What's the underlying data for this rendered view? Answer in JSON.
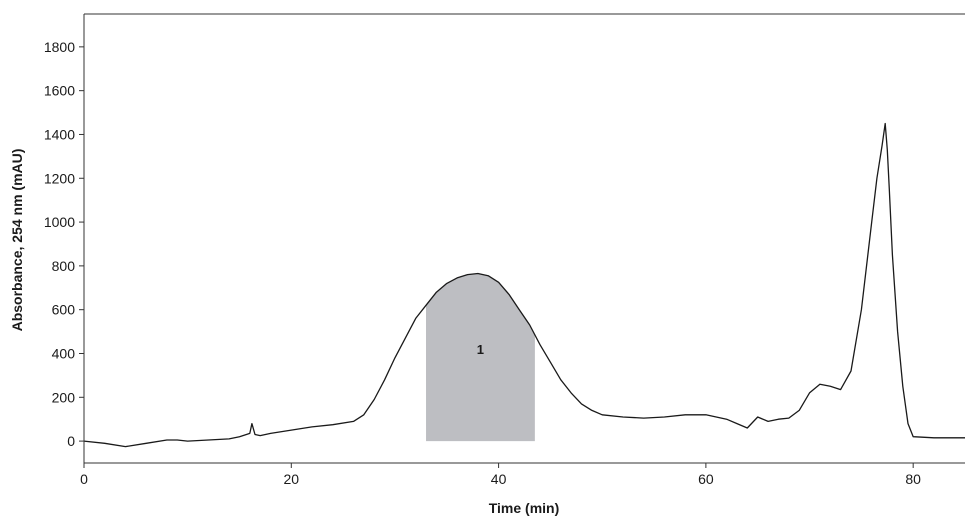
{
  "chart_data": {
    "type": "line",
    "title": "",
    "xlabel": "Time (min)",
    "ylabel": "Absorbance, 254 nm (mAU)",
    "xlim": [
      0,
      85
    ],
    "ylim": [
      -100,
      1950
    ],
    "xticks": [
      0,
      20,
      40,
      60,
      80
    ],
    "yticks": [
      0,
      200,
      400,
      600,
      800,
      1000,
      1200,
      1400,
      1600,
      1800
    ],
    "grid": false,
    "legend": "none",
    "line_color": "#1a1a1a",
    "shade_color": "#bdbec2",
    "series": [
      {
        "x": [
          0,
          2,
          4,
          6,
          8,
          9,
          10,
          12,
          14,
          15,
          16,
          16.2,
          16.5,
          17,
          18,
          20,
          22,
          24,
          26,
          27,
          28,
          29,
          30,
          31,
          32,
          33,
          34,
          35,
          36,
          37,
          38,
          39,
          40,
          41,
          42,
          43,
          44,
          45,
          46,
          47,
          48,
          49,
          50,
          52,
          54,
          56,
          58,
          60,
          62,
          63,
          64,
          65,
          66,
          67,
          68,
          69,
          70,
          71,
          72,
          73,
          74,
          75,
          76,
          76.5,
          77,
          77.3,
          77.5,
          77.7,
          78,
          78.5,
          79,
          79.5,
          80,
          82,
          85
        ],
        "y": [
          0,
          -10,
          -25,
          -10,
          5,
          5,
          0,
          5,
          10,
          20,
          35,
          80,
          30,
          25,
          35,
          50,
          65,
          75,
          90,
          120,
          190,
          280,
          380,
          470,
          560,
          620,
          680,
          720,
          745,
          760,
          765,
          755,
          725,
          670,
          600,
          530,
          440,
          360,
          280,
          220,
          170,
          140,
          120,
          110,
          105,
          110,
          120,
          120,
          100,
          80,
          60,
          110,
          90,
          100,
          105,
          140,
          220,
          260,
          250,
          235,
          320,
          600,
          1000,
          1200,
          1350,
          1450,
          1330,
          1150,
          850,
          500,
          250,
          80,
          20,
          15,
          15
        ]
      }
    ],
    "shaded_regions": [
      {
        "from": 33,
        "to": 43.5,
        "label": "1"
      }
    ]
  }
}
